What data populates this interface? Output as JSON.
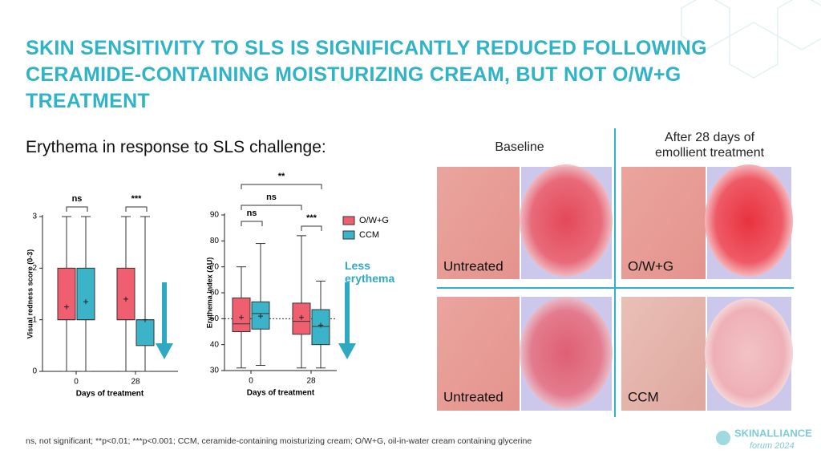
{
  "title": "SKIN SENSITIVITY TO SLS IS SIGNIFICANTLY REDUCED FOLLOWING CERAMIDE-CONTAINING MOISTURIZING CREAM, BUT NOT O/W+G TREATMENT",
  "subtitle": "Erythema in response to SLS challenge:",
  "chart_data": [
    {
      "type": "box",
      "ylabel": "Visual redness score (0-3)",
      "xlabel": "Days of treatment",
      "categories": [
        "0",
        "28"
      ],
      "ylim": [
        0,
        3
      ],
      "yticks": [
        0,
        1,
        2,
        3
      ],
      "legend": false,
      "annotations": [
        "ns",
        "***"
      ],
      "series": [
        {
          "name": "O/W+G",
          "color": "#ef5f70",
          "values": [
            {
              "min": 0,
              "q1": 1,
              "median": 1,
              "q3": 2,
              "max": 3,
              "mean": 1.25
            },
            {
              "min": 0,
              "q1": 1,
              "median": 1,
              "q3": 2,
              "max": 3,
              "mean": 1.4
            }
          ]
        },
        {
          "name": "CCM",
          "color": "#3bb4c9",
          "values": [
            {
              "min": 0,
              "q1": 1,
              "median": 1,
              "q3": 2,
              "max": 3,
              "mean": 1.35
            },
            {
              "min": 0,
              "q1": 0.5,
              "median": 1,
              "q3": 1,
              "max": 3,
              "mean": 1
            }
          ]
        }
      ]
    },
    {
      "type": "box",
      "ylabel": "Erythema index (AU)",
      "xlabel": "Days of treatment",
      "categories": [
        "0",
        "28"
      ],
      "ylim": [
        30,
        90
      ],
      "yticks": [
        30,
        40,
        50,
        60,
        70,
        80,
        90
      ],
      "legend": true,
      "reference_line": 50,
      "annotations": [
        "ns",
        "**",
        "ns",
        "***"
      ],
      "arrow_label": "Less erythema",
      "series": [
        {
          "name": "O/W+G",
          "color": "#ef5f70",
          "values": [
            {
              "min": 31,
              "q1": 45,
              "median": 48,
              "q3": 58,
              "max": 70,
              "mean": 50.5
            },
            {
              "min": 31,
              "q1": 44,
              "median": 49,
              "q3": 56,
              "max": 82,
              "mean": 50.5
            }
          ]
        },
        {
          "name": "CCM",
          "color": "#3bb4c9",
          "values": [
            {
              "min": 32,
              "q1": 46,
              "median": 52,
              "q3": 56.5,
              "max": 79,
              "mean": 51
            },
            {
              "min": 31,
              "q1": 40,
              "median": 47,
              "q3": 53.5,
              "max": 64.5,
              "mean": 47.5
            }
          ]
        }
      ]
    }
  ],
  "images": {
    "column_headers": [
      "Baseline",
      "After 28 days of emollient treatment"
    ],
    "labels": [
      "Untreated",
      "O/W+G",
      "Untreated",
      "CCM"
    ]
  },
  "footnote": "ns, not significant; **p<0.01; ***p<0.001; CCM, ceramide-containing moisturizing cream; O/W+G, oil-in-water cream containing glycerine",
  "logo": {
    "brand": "SKINALLIANCE",
    "event": "forum 2024"
  }
}
